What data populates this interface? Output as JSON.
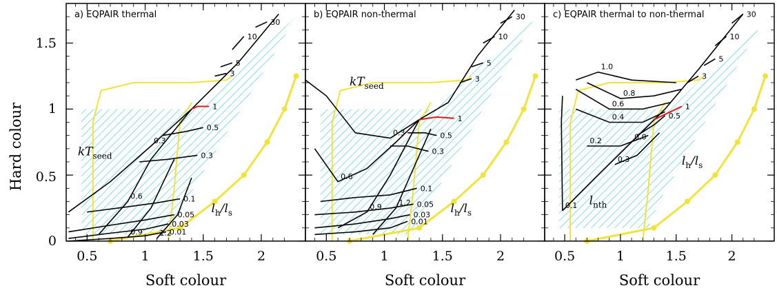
{
  "chart_data": {
    "type": "line",
    "ylabel": "Hard colour",
    "xlabel": "Soft colour",
    "xlim": [
      0.32,
      2.38
    ],
    "ylim": [
      0,
      1.8
    ],
    "x_ticks": [
      "0.5",
      "1",
      "1.5",
      "2"
    ],
    "y_ticks": [
      "0",
      "0.5",
      "1",
      "1.5"
    ],
    "panels": [
      {
        "title": "a) EQPAIR thermal",
        "ktseed_lines": [
          {
            "label": "0.3",
            "points": [
              [
                0.34,
                0.22
              ],
              [
                0.7,
                0.45
              ],
              [
                1.05,
                0.72
              ],
              [
                1.4,
                1.0
              ],
              [
                1.8,
                1.35
              ],
              [
                2.15,
                1.72
              ]
            ]
          },
          {
            "label": "0.6",
            "points": [
              [
                0.6,
                0.05
              ],
              [
                0.85,
                0.3
              ],
              [
                1.05,
                0.62
              ],
              [
                1.4,
                1.0
              ]
            ]
          },
          {
            "label": "0.9",
            "points": [
              [
                0.85,
                0.03
              ],
              [
                1.05,
                0.25
              ],
              [
                1.25,
                0.62
              ]
            ]
          },
          {
            "label": "1.2",
            "points": [
              [
                1.1,
                0.02
              ],
              [
                1.28,
                0.2
              ],
              [
                1.4,
                0.48
              ]
            ]
          }
        ],
        "lhls_lines": [
          {
            "label": "0.01",
            "points": [
              [
                0.34,
                0.0
              ],
              [
                0.7,
                0.02
              ],
              [
                1.0,
                0.04
              ],
              [
                1.18,
                0.07
              ]
            ]
          },
          {
            "label": "0.03",
            "points": [
              [
                0.34,
                0.02
              ],
              [
                0.7,
                0.06
              ],
              [
                1.0,
                0.09
              ],
              [
                1.2,
                0.13
              ]
            ]
          },
          {
            "label": "0.05",
            "points": [
              [
                0.34,
                0.07
              ],
              [
                0.7,
                0.12
              ],
              [
                1.0,
                0.16
              ],
              [
                1.25,
                0.2
              ]
            ]
          },
          {
            "label": "0.1",
            "points": [
              [
                0.5,
                0.22
              ],
              [
                0.85,
                0.26
              ],
              [
                1.1,
                0.29
              ],
              [
                1.3,
                0.32
              ]
            ]
          },
          {
            "label": "0.3",
            "points": [
              [
                0.95,
                0.6
              ],
              [
                1.2,
                0.62
              ],
              [
                1.45,
                0.65
              ]
            ]
          },
          {
            "label": "0.5",
            "points": [
              [
                1.15,
                0.8
              ],
              [
                1.35,
                0.83
              ],
              [
                1.5,
                0.86
              ]
            ]
          },
          {
            "label": "1",
            "points": [
              [
                1.4,
                1.0
              ],
              [
                1.45,
                1.02
              ],
              [
                1.55,
                1.02
              ]
            ]
          },
          {
            "label": "3",
            "points": [
              [
                1.6,
                1.25
              ],
              [
                1.7,
                1.27
              ]
            ]
          },
          {
            "label": "5",
            "points": [
              [
                1.65,
                1.32
              ],
              [
                1.75,
                1.35
              ]
            ]
          },
          {
            "label": "10",
            "points": [
              [
                1.75,
                1.45
              ],
              [
                1.85,
                1.55
              ]
            ]
          },
          {
            "label": "30",
            "points": [
              [
                1.95,
                1.62
              ],
              [
                2.05,
                1.66
              ]
            ]
          }
        ],
        "ktseed_annotation": "kT",
        "ktseed_annotation_sub": "seed",
        "lhls_annotation": "l",
        "lhls_annotation_mid": "h",
        "lhls_annotation_end": "/l",
        "lhls_annotation_sub2": "s"
      },
      {
        "title": "b) EQPAIR non-thermal",
        "ktseed_lines": [
          {
            "label": "0.3",
            "points": [
              [
                0.32,
                1.22
              ],
              [
                0.5,
                1.1
              ],
              [
                0.75,
                0.82
              ],
              [
                1.05,
                0.78
              ],
              [
                1.3,
                0.92
              ],
              [
                1.55,
                1.05
              ],
              [
                1.8,
                1.4
              ],
              [
                2.12,
                1.75
              ]
            ]
          },
          {
            "label": "0.6",
            "points": [
              [
                0.4,
                0.7
              ],
              [
                0.6,
                0.45
              ],
              [
                0.85,
                0.55
              ],
              [
                1.1,
                0.75
              ],
              [
                1.3,
                0.92
              ]
            ]
          },
          {
            "label": "0.9",
            "points": [
              [
                0.6,
                0.1
              ],
              [
                0.85,
                0.22
              ],
              [
                1.05,
                0.5
              ],
              [
                1.3,
                0.92
              ]
            ]
          },
          {
            "label": "1.2",
            "points": [
              [
                0.9,
                0.05
              ],
              [
                1.1,
                0.25
              ],
              [
                1.25,
                0.55
              ],
              [
                1.4,
                0.85
              ]
            ]
          }
        ],
        "lhls_lines": [
          {
            "label": "0.01",
            "points": [
              [
                0.4,
                0.05
              ],
              [
                0.75,
                0.07
              ],
              [
                1.05,
                0.1
              ],
              [
                1.2,
                0.15
              ]
            ]
          },
          {
            "label": "0.03",
            "points": [
              [
                0.4,
                0.1
              ],
              [
                0.75,
                0.13
              ],
              [
                1.05,
                0.17
              ],
              [
                1.22,
                0.2
              ]
            ]
          },
          {
            "label": "0.05",
            "points": [
              [
                0.4,
                0.2
              ],
              [
                0.75,
                0.22
              ],
              [
                1.05,
                0.25
              ],
              [
                1.25,
                0.28
              ]
            ]
          },
          {
            "label": "0.1",
            "points": [
              [
                0.45,
                0.3
              ],
              [
                0.75,
                0.33
              ],
              [
                1.05,
                0.35
              ],
              [
                1.28,
                0.4
              ]
            ]
          },
          {
            "label": "0.3",
            "points": [
              [
                1.05,
                0.72
              ],
              [
                1.2,
                0.72
              ],
              [
                1.38,
                0.68
              ]
            ]
          },
          {
            "label": "0.5",
            "points": [
              [
                1.2,
                0.82
              ],
              [
                1.35,
                0.82
              ],
              [
                1.45,
                0.8
              ]
            ]
          },
          {
            "label": "1",
            "points": [
              [
                1.3,
                0.92
              ],
              [
                1.45,
                0.94
              ],
              [
                1.6,
                0.93
              ]
            ]
          },
          {
            "label": "3",
            "points": [
              [
                1.65,
                1.2
              ],
              [
                1.75,
                1.23
              ]
            ]
          },
          {
            "label": "5",
            "points": [
              [
                1.75,
                1.32
              ],
              [
                1.85,
                1.35
              ]
            ]
          },
          {
            "label": "10",
            "points": [
              [
                1.85,
                1.5
              ],
              [
                1.95,
                1.55
              ]
            ]
          },
          {
            "label": "30",
            "points": [
              [
                2.0,
                1.65
              ],
              [
                2.1,
                1.7
              ]
            ]
          }
        ],
        "ktseed_annotation": "kT",
        "ktseed_annotation_sub": "seed",
        "lhls_annotation": "l",
        "lhls_annotation_mid": "h",
        "lhls_annotation_end": "/l",
        "lhls_annotation_sub2": "s"
      },
      {
        "title": "c) EQPAIR thermal to non-thermal",
        "ktseed_lines": [
          {
            "label": "0.0",
            "points": [
              [
                0.48,
                0.23
              ],
              [
                0.8,
                0.5
              ],
              [
                1.1,
                0.75
              ],
              [
                1.4,
                1.0
              ],
              [
                1.7,
                1.3
              ],
              [
                2.1,
                1.72
              ]
            ]
          },
          {
            "label": "0.1",
            "points": [
              [
                0.48,
                0.23
              ],
              [
                0.47,
                0.9
              ],
              [
                0.48,
                1.1
              ]
            ]
          },
          {
            "label": "0.2",
            "points": [
              [
                0.7,
                0.72
              ],
              [
                1.0,
                0.72
              ],
              [
                1.25,
                0.8
              ]
            ]
          },
          {
            "label": "0.3",
            "points": [
              [
                0.95,
                0.58
              ],
              [
                1.15,
                0.65
              ],
              [
                1.35,
                0.82
              ]
            ]
          },
          {
            "label": "0.4",
            "points": [
              [
                0.6,
                1.0
              ],
              [
                0.9,
                0.9
              ],
              [
                1.2,
                0.9
              ],
              [
                1.4,
                0.98
              ]
            ]
          },
          {
            "label": "0.6",
            "points": [
              [
                0.6,
                1.15
              ],
              [
                0.9,
                1.0
              ],
              [
                1.2,
                1.0
              ],
              [
                1.45,
                1.05
              ]
            ]
          },
          {
            "label": "0.8",
            "points": [
              [
                0.7,
                1.2
              ],
              [
                1.0,
                1.08
              ],
              [
                1.3,
                1.1
              ],
              [
                1.55,
                1.15
              ]
            ]
          },
          {
            "label": "1.0",
            "points": [
              [
                0.6,
                1.22
              ],
              [
                0.8,
                1.28
              ],
              [
                1.1,
                1.22
              ],
              [
                1.5,
                1.2
              ]
            ]
          }
        ],
        "lhls_lines": [
          {
            "label": "0.5",
            "points": [
              [
                1.15,
                0.8
              ],
              [
                1.3,
                0.88
              ],
              [
                1.4,
                0.95
              ]
            ]
          },
          {
            "label": "1",
            "points": [
              [
                1.3,
                0.92
              ],
              [
                1.45,
                0.98
              ],
              [
                1.55,
                1.02
              ]
            ]
          },
          {
            "label": "3",
            "points": [
              [
                1.6,
                1.2
              ],
              [
                1.7,
                1.25
              ]
            ]
          },
          {
            "label": "5",
            "points": [
              [
                1.75,
                1.33
              ],
              [
                1.85,
                1.38
              ]
            ]
          },
          {
            "label": "10",
            "points": [
              [
                1.85,
                1.48
              ],
              [
                1.95,
                1.55
              ]
            ]
          },
          {
            "label": "30",
            "points": [
              [
                2.0,
                1.65
              ],
              [
                2.1,
                1.72
              ]
            ]
          }
        ],
        "ktseed_annotation": "l",
        "ktseed_annotation_sub": "nth",
        "lhls_annotation": "l",
        "lhls_annotation_mid": "h",
        "lhls_annotation_end": "/l",
        "lhls_annotation_sub2": "s"
      }
    ]
  }
}
